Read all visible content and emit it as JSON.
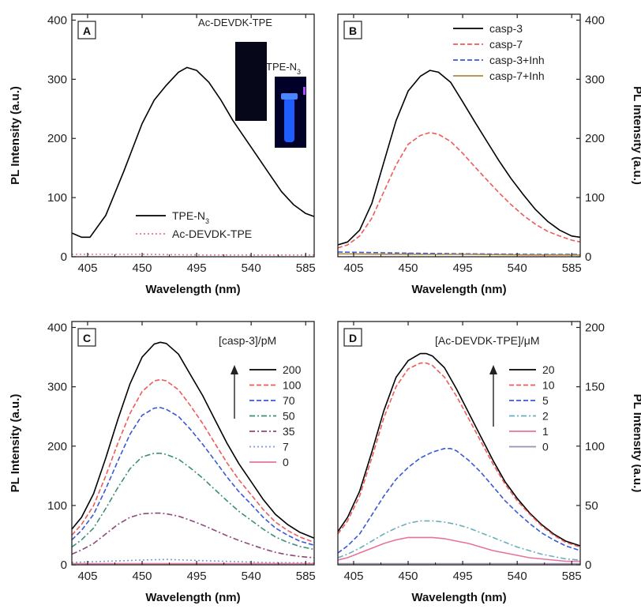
{
  "chart_data": [
    {
      "type": "line",
      "panel_label": "A",
      "xlabel": "Wavelength (nm)",
      "ylabel": "PL Intensity (a.u.)",
      "y_axis_side": "left",
      "xlim": [
        392,
        592
      ],
      "ylim": [
        0,
        410
      ],
      "x_ticks": [
        405,
        450,
        495,
        540,
        585
      ],
      "y_ticks": [
        0,
        100,
        200,
        300,
        400
      ],
      "legend_placement": "bottom-left",
      "annotations": [
        "Ac-DEVDK-TPE",
        "TPE-N3"
      ],
      "inset_images": [
        {
          "label": "Ac-DEVDK-TPE",
          "appearance": "dark vial, no fluorescence"
        },
        {
          "label": "TPE-N3",
          "appearance": "blue fluorescent vial"
        }
      ],
      "series": [
        {
          "name": "TPE-N3",
          "color": "#000000",
          "style": "solid",
          "x": [
            392,
            400,
            407,
            420,
            435,
            450,
            460,
            470,
            480,
            487,
            495,
            505,
            515,
            525,
            535,
            545,
            555,
            565,
            575,
            585,
            592
          ],
          "y": [
            40,
            33,
            33,
            70,
            145,
            225,
            265,
            290,
            312,
            320,
            315,
            295,
            265,
            230,
            200,
            170,
            140,
            110,
            88,
            73,
            68
          ]
        },
        {
          "name": "Ac-DEVDK-TPE",
          "color": "#e8739a",
          "style": "dotted",
          "x": [
            392,
            450,
            500,
            550,
            592
          ],
          "y": [
            4,
            4,
            3,
            3,
            3
          ]
        }
      ]
    },
    {
      "type": "line",
      "panel_label": "B",
      "xlabel": "Wavelength (nm)",
      "ylabel": "PL Intensity (a.u.)",
      "y_axis_side": "right",
      "xlim": [
        392,
        592
      ],
      "ylim": [
        0,
        410
      ],
      "x_ticks": [
        405,
        450,
        495,
        540,
        585
      ],
      "y_ticks": [
        0,
        100,
        200,
        300,
        400
      ],
      "legend_placement": "top-right",
      "series": [
        {
          "name": "casp-3",
          "color": "#000000",
          "style": "solid",
          "x": [
            392,
            400,
            410,
            420,
            430,
            440,
            450,
            460,
            468,
            475,
            485,
            495,
            505,
            515,
            525,
            535,
            545,
            555,
            565,
            575,
            585,
            592
          ],
          "y": [
            20,
            25,
            45,
            90,
            160,
            230,
            280,
            305,
            315,
            312,
            295,
            262,
            228,
            195,
            162,
            132,
            105,
            80,
            60,
            45,
            35,
            33
          ]
        },
        {
          "name": "casp-7",
          "color": "#ef5a5a",
          "style": "dashed",
          "x": [
            392,
            400,
            410,
            420,
            430,
            440,
            450,
            460,
            468,
            475,
            485,
            495,
            505,
            515,
            525,
            535,
            545,
            555,
            565,
            575,
            585,
            592
          ],
          "y": [
            15,
            20,
            35,
            65,
            110,
            155,
            190,
            205,
            210,
            207,
            195,
            175,
            152,
            130,
            108,
            88,
            70,
            55,
            43,
            35,
            28,
            25
          ]
        },
        {
          "name": "casp-3+Inh",
          "color": "#3a58d8",
          "style": "dashed",
          "x": [
            392,
            450,
            500,
            550,
            592
          ],
          "y": [
            8,
            6,
            5,
            4,
            4
          ]
        },
        {
          "name": "casp-7+Inh",
          "color": "#b08a3c",
          "style": "solid",
          "x": [
            392,
            450,
            500,
            550,
            592
          ],
          "y": [
            5,
            4,
            4,
            3,
            3
          ]
        }
      ]
    },
    {
      "type": "line",
      "panel_label": "C",
      "xlabel": "Wavelength (nm)",
      "ylabel": "PL Intensity (a.u.)",
      "y_axis_side": "left",
      "xlim": [
        392,
        592
      ],
      "ylim": [
        0,
        410
      ],
      "x_ticks": [
        405,
        450,
        495,
        540,
        585
      ],
      "y_ticks": [
        0,
        100,
        200,
        300,
        400
      ],
      "legend_title": "[casp-3]/pM",
      "legend_placement": "top-right",
      "series": [
        {
          "name": "200",
          "color": "#000000",
          "style": "solid",
          "x": [
            392,
            400,
            410,
            420,
            430,
            440,
            450,
            460,
            465,
            470,
            480,
            490,
            500,
            510,
            520,
            530,
            540,
            550,
            560,
            570,
            580,
            592
          ],
          "y": [
            60,
            80,
            120,
            180,
            245,
            305,
            350,
            372,
            375,
            373,
            355,
            320,
            285,
            245,
            205,
            170,
            140,
            110,
            85,
            68,
            55,
            45
          ]
        },
        {
          "name": "100",
          "color": "#ef5a5a",
          "style": "dashed",
          "x": [
            392,
            400,
            410,
            420,
            430,
            440,
            450,
            460,
            465,
            470,
            480,
            490,
            500,
            510,
            520,
            530,
            540,
            550,
            560,
            570,
            580,
            592
          ],
          "y": [
            50,
            68,
            100,
            150,
            205,
            255,
            292,
            310,
            312,
            310,
            295,
            268,
            238,
            205,
            172,
            143,
            118,
            93,
            72,
            58,
            47,
            38
          ]
        },
        {
          "name": "70",
          "color": "#3a58d8",
          "style": "dashed",
          "x": [
            392,
            400,
            410,
            420,
            430,
            440,
            450,
            460,
            465,
            470,
            480,
            490,
            500,
            510,
            520,
            530,
            540,
            550,
            560,
            570,
            580,
            592
          ],
          "y": [
            42,
            58,
            85,
            128,
            175,
            220,
            252,
            264,
            265,
            262,
            250,
            228,
            203,
            176,
            148,
            123,
            102,
            80,
            62,
            50,
            40,
            33
          ]
        },
        {
          "name": "50",
          "color": "#3c8f7a",
          "style": "dashdot",
          "x": [
            392,
            400,
            410,
            420,
            430,
            440,
            450,
            460,
            465,
            470,
            480,
            490,
            500,
            510,
            520,
            530,
            540,
            550,
            560,
            570,
            580,
            592
          ],
          "y": [
            30,
            42,
            62,
            95,
            130,
            162,
            182,
            188,
            188,
            186,
            178,
            163,
            146,
            127,
            108,
            90,
            75,
            60,
            47,
            38,
            31,
            26
          ]
        },
        {
          "name": "35",
          "color": "#8c4a7a",
          "style": "dashdot",
          "x": [
            392,
            400,
            410,
            420,
            430,
            440,
            450,
            460,
            465,
            470,
            480,
            490,
            500,
            510,
            520,
            530,
            540,
            550,
            560,
            570,
            580,
            592
          ],
          "y": [
            18,
            25,
            36,
            52,
            68,
            80,
            86,
            87,
            87,
            86,
            82,
            75,
            67,
            58,
            49,
            41,
            34,
            27,
            21,
            17,
            14,
            12
          ]
        },
        {
          "name": "7",
          "color": "#7a9ad8",
          "style": "dotted",
          "x": [
            392,
            450,
            470,
            500,
            550,
            592
          ],
          "y": [
            4,
            8,
            9,
            7,
            4,
            3
          ]
        },
        {
          "name": "0",
          "color": "#e8739a",
          "style": "solid",
          "x": [
            392,
            450,
            500,
            550,
            592
          ],
          "y": [
            2,
            2,
            2,
            2,
            2
          ]
        }
      ]
    },
    {
      "type": "line",
      "panel_label": "D",
      "xlabel": "Wavelength (nm)",
      "ylabel": "PL Intensity (a.u.)",
      "y_axis_side": "right",
      "xlim": [
        392,
        592
      ],
      "ylim": [
        0,
        205
      ],
      "x_ticks": [
        405,
        450,
        495,
        540,
        585
      ],
      "y_ticks": [
        0,
        50,
        100,
        150,
        200
      ],
      "legend_title": "[Ac-DEVDK-TPE]/μM",
      "legend_placement": "top-right",
      "series": [
        {
          "name": "20",
          "color": "#000000",
          "style": "solid",
          "x": [
            392,
            400,
            410,
            420,
            430,
            440,
            450,
            460,
            465,
            470,
            480,
            490,
            500,
            510,
            520,
            530,
            540,
            550,
            560,
            570,
            580,
            592
          ],
          "y": [
            28,
            40,
            62,
            95,
            130,
            158,
            172,
            178,
            178,
            176,
            166,
            148,
            128,
            108,
            88,
            70,
            56,
            44,
            34,
            26,
            20,
            16
          ]
        },
        {
          "name": "10",
          "color": "#ef5a5a",
          "style": "dashed",
          "x": [
            392,
            400,
            410,
            420,
            430,
            440,
            450,
            460,
            465,
            470,
            480,
            490,
            500,
            510,
            520,
            530,
            540,
            550,
            560,
            570,
            580,
            592
          ],
          "y": [
            26,
            37,
            58,
            90,
            124,
            150,
            165,
            170,
            170,
            168,
            158,
            142,
            123,
            104,
            85,
            68,
            54,
            43,
            33,
            25,
            19,
            15
          ]
        },
        {
          "name": "5",
          "color": "#3a58d8",
          "style": "dashed",
          "x": [
            392,
            400,
            410,
            420,
            430,
            440,
            450,
            460,
            470,
            480,
            485,
            490,
            500,
            510,
            520,
            530,
            540,
            550,
            560,
            570,
            580,
            592
          ],
          "y": [
            10,
            16,
            26,
            42,
            58,
            72,
            82,
            90,
            95,
            98,
            98,
            96,
            88,
            78,
            66,
            54,
            44,
            35,
            27,
            21,
            16,
            12
          ]
        },
        {
          "name": "2",
          "color": "#6aaec0",
          "style": "dashdot",
          "x": [
            392,
            400,
            410,
            420,
            430,
            440,
            450,
            460,
            470,
            480,
            490,
            500,
            510,
            520,
            530,
            540,
            550,
            560,
            570,
            580,
            592
          ],
          "y": [
            6,
            9,
            14,
            20,
            26,
            31,
            35,
            37,
            37,
            36,
            34,
            31,
            27,
            23,
            19,
            15,
            12,
            9,
            7,
            5,
            4
          ]
        },
        {
          "name": "1",
          "color": "#e8739a",
          "style": "solid",
          "x": [
            392,
            400,
            410,
            420,
            430,
            440,
            450,
            460,
            470,
            480,
            490,
            500,
            510,
            520,
            530,
            540,
            550,
            560,
            570,
            580,
            592
          ],
          "y": [
            4,
            6,
            10,
            14,
            18,
            21,
            23,
            23,
            23,
            22,
            20,
            18,
            15,
            12,
            10,
            8,
            6,
            5,
            4,
            3,
            3
          ]
        },
        {
          "name": "0",
          "color": "#9b8fb0",
          "style": "solid",
          "x": [
            392,
            450,
            500,
            550,
            592
          ],
          "y": [
            1,
            1,
            1,
            1,
            1
          ]
        }
      ]
    }
  ]
}
